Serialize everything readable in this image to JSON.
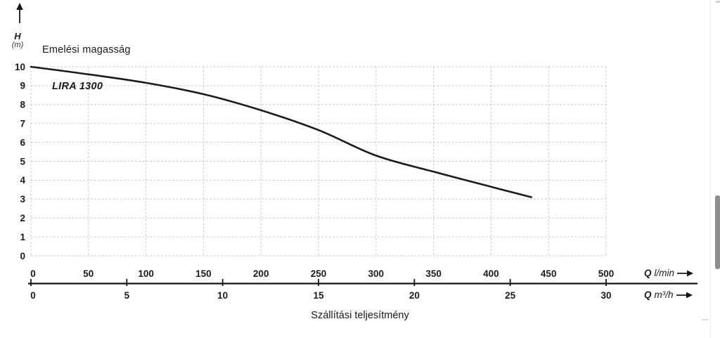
{
  "chart_data": {
    "type": "line",
    "title": "Emelési magasság",
    "xlabel": "Szállítási teljesítmény",
    "series": [
      {
        "name": "LIRA 1300",
        "points_q_lmin_h_m": [
          [
            0,
            10.0
          ],
          [
            50,
            9.6
          ],
          [
            100,
            9.15
          ],
          [
            150,
            8.55
          ],
          [
            200,
            7.7
          ],
          [
            250,
            6.65
          ],
          [
            300,
            5.3
          ],
          [
            350,
            4.45
          ],
          [
            400,
            3.65
          ],
          [
            435,
            3.1
          ]
        ]
      }
    ],
    "x_axis_primary": {
      "symbol": "Q",
      "unit": "l/min",
      "ticks": [
        0,
        50,
        100,
        150,
        200,
        250,
        300,
        350,
        400,
        450,
        500
      ],
      "range": [
        0,
        500
      ]
    },
    "x_axis_secondary": {
      "symbol": "Q",
      "unit": "m³/h",
      "ticks": [
        0,
        5,
        10,
        15,
        20,
        25,
        30
      ],
      "range": [
        0,
        30
      ]
    },
    "y_axis": {
      "symbol": "H",
      "unit": "(m)",
      "ticks": [
        0,
        1,
        2,
        3,
        4,
        5,
        6,
        7,
        8,
        9,
        10
      ],
      "range": [
        0,
        10
      ]
    },
    "grid": "dashed",
    "legend": "inline-label",
    "colors": {
      "curve": "#1b1b1b",
      "grid": "#c3c3c3",
      "axis": "#141414",
      "text": "#1a1a1a"
    }
  },
  "scrollbar": {
    "present": true
  }
}
